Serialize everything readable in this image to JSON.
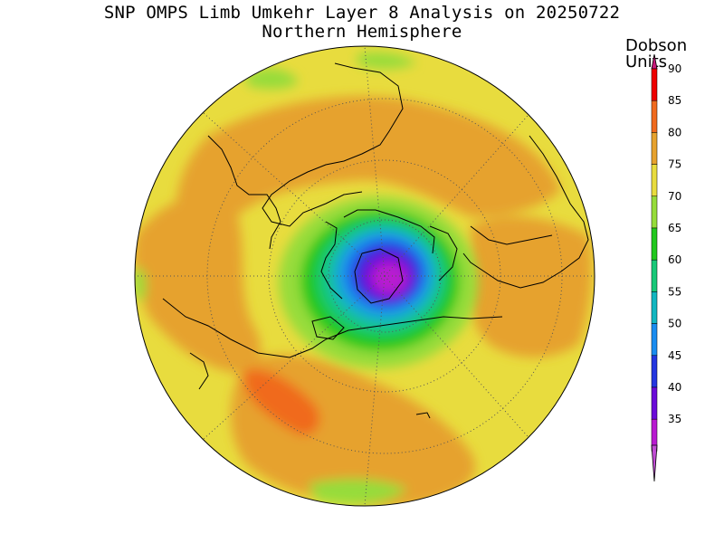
{
  "title": "SNP OMPS Limb Umkehr Layer 8 Analysis on 20250722",
  "subtitle": "Northern Hemisphere",
  "colorbar": {
    "title_line1": "Dobson",
    "title_line2": "Units",
    "ticks": [
      "90",
      "85",
      "80",
      "75",
      "70",
      "65",
      "60",
      "55",
      "50",
      "45",
      "40",
      "35"
    ],
    "colors": [
      "#ee0000",
      "#f06a1e",
      "#e6a22e",
      "#e8dc3e",
      "#96dc3a",
      "#22c81e",
      "#18c878",
      "#12b6c0",
      "#1a8cf0",
      "#2436e0",
      "#6a0ad8",
      "#b81ad0"
    ]
  },
  "map": {
    "projection": "north-polar-stereographic",
    "hemisphere": "Northern Hemisphere",
    "value_range_du": [
      35,
      90
    ],
    "features": [
      "coastlines",
      "graticule"
    ]
  }
}
